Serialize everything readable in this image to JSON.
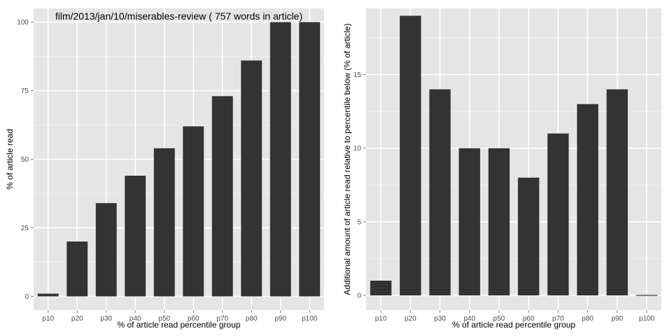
{
  "chart_data": [
    {
      "type": "bar",
      "title": "film/2013/jan/10/miserables-review ( 757 words in article)",
      "xlabel": "% of article read percentile group",
      "ylabel": "% of article read",
      "categories": [
        "p10",
        "p20",
        "p30",
        "p40",
        "p50",
        "p60",
        "p70",
        "p80",
        "p90",
        "p100"
      ],
      "values": [
        1,
        20,
        34,
        44,
        54,
        62,
        73,
        86,
        100,
        100
      ],
      "ylim": [
        -5,
        105
      ],
      "yticks": [
        0,
        25,
        50,
        75,
        100
      ],
      "ytick_labels": [
        "0",
        "25",
        "50",
        "75",
        "100"
      ],
      "grid": true,
      "bar_color": "#333333",
      "panel_color": "#e5e5e5",
      "grid_color": "#ffffff"
    },
    {
      "type": "bar",
      "title": "",
      "xlabel": "% of article read percentile group",
      "ylabel": "Additional amount of article read relative to percentile below (% of article)",
      "categories": [
        "p10",
        "p20",
        "p30",
        "p40",
        "p50",
        "p60",
        "p70",
        "p80",
        "p90",
        "p100"
      ],
      "values": [
        1,
        19,
        14,
        10,
        10,
        8,
        11,
        13,
        14,
        0
      ],
      "ylim": [
        -1,
        19.5
      ],
      "yticks": [
        0,
        5,
        10,
        15
      ],
      "ytick_labels": [
        "0",
        "5",
        "10",
        "15"
      ],
      "grid": true,
      "bar_color": "#333333",
      "panel_color": "#e5e5e5",
      "grid_color": "#ffffff"
    }
  ]
}
